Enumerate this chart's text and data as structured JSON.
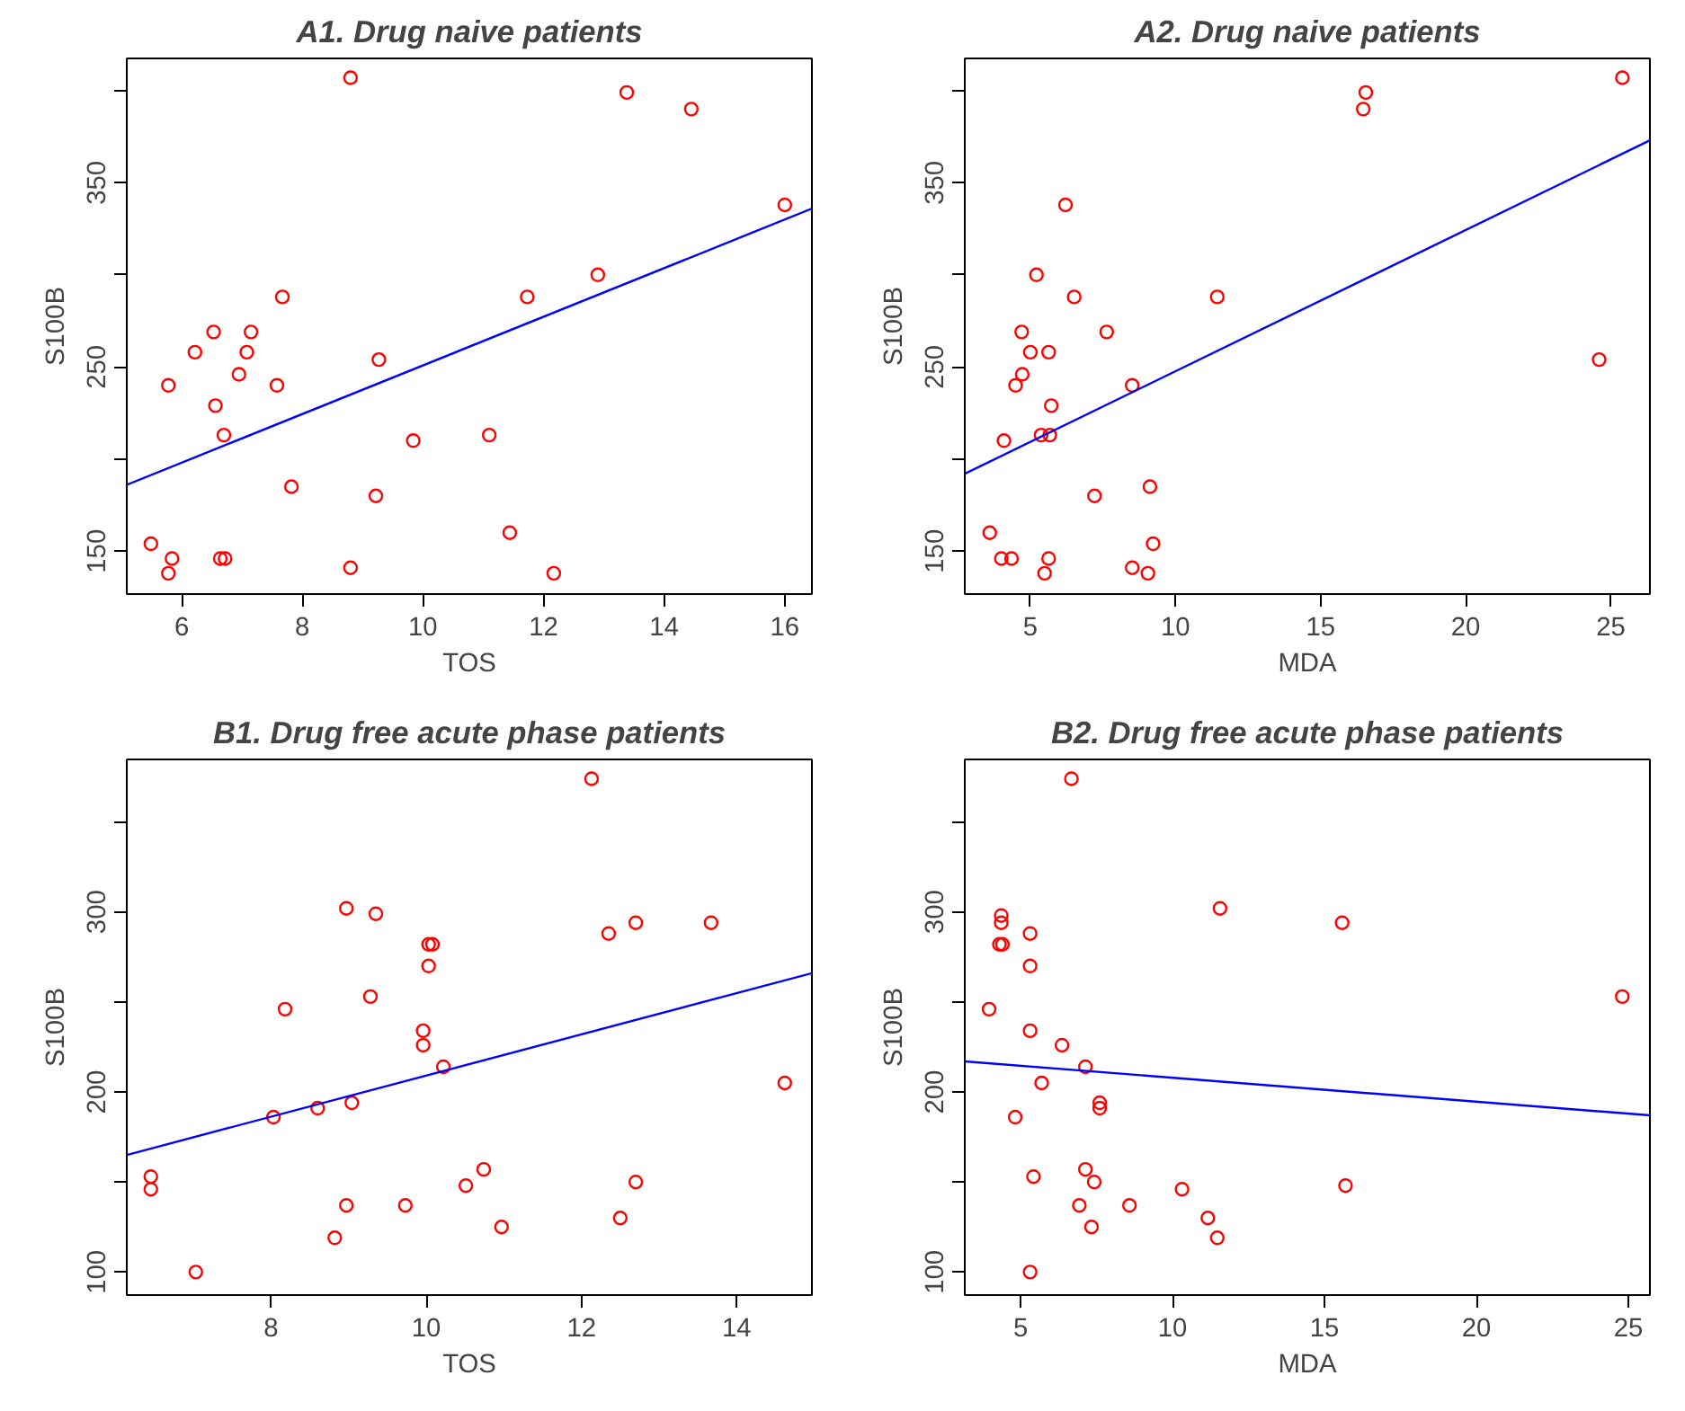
{
  "chart_data": [
    {
      "type": "scatter",
      "title": "A1. Drug naive patients",
      "xlabel": "TOS",
      "ylabel": "S100B",
      "grid": false,
      "xlim": [
        5.09,
        16.45
      ],
      "ylim": [
        126.7,
        417.5
      ],
      "xticks": [
        6,
        8,
        10,
        12,
        14,
        16
      ],
      "yticks": [
        150,
        {
          "value": 200,
          "label": null
        },
        250,
        {
          "value": 300,
          "label": null
        },
        350,
        {
          "value": 400,
          "label": null
        }
      ],
      "series": [
        {
          "marker": "circle",
          "color": "#ff0000",
          "x": [
            8.8,
            13.38,
            14.45,
            16.0,
            12.9,
            7.67,
            11.73,
            6.53,
            7.15,
            6.22,
            7.08,
            9.27,
            6.95,
            5.78,
            7.58,
            6.56,
            6.7,
            9.84,
            11.1,
            7.82,
            9.22,
            11.44,
            5.49,
            5.84,
            6.64,
            6.72,
            5.78,
            8.8,
            12.17
          ],
          "values": [
            407,
            399,
            390,
            338,
            300,
            288,
            288,
            269,
            269,
            258,
            258,
            254,
            246,
            240,
            240,
            229,
            213,
            210,
            213,
            185,
            180,
            160,
            154,
            146,
            146,
            146,
            138,
            141,
            138
          ]
        },
        {
          "type": "line",
          "marker": "none",
          "color": "#0000ff",
          "x": [
            5.09,
            16.45
          ],
          "values": [
            186,
            336
          ]
        }
      ]
    },
    {
      "type": "scatter",
      "title": "A2. Drug naive patients",
      "xlabel": "MDA",
      "ylabel": "S100B",
      "grid": false,
      "xlim": [
        2.74,
        26.35
      ],
      "ylim": [
        126.7,
        417.5
      ],
      "xticks": [
        5,
        10,
        15,
        20,
        25
      ],
      "yticks": [
        150,
        {
          "value": 200,
          "label": null
        },
        250,
        {
          "value": 300,
          "label": null
        },
        350,
        {
          "value": 400,
          "label": null
        }
      ],
      "series": [
        {
          "marker": "circle",
          "color": "#ff0000",
          "x": [
            25.4,
            16.56,
            16.47,
            6.21,
            5.21,
            6.51,
            11.44,
            4.7,
            7.63,
            5.0,
            5.63,
            24.6,
            4.72,
            4.49,
            8.51,
            5.72,
            5.37,
            5.67,
            4.09,
            9.12,
            7.21,
            9.23,
            3.6,
            4.0,
            4.35,
            5.63,
            5.49,
            8.51,
            9.05
          ],
          "values": [
            407,
            399,
            390,
            338,
            300,
            288,
            288,
            269,
            269,
            258,
            258,
            254,
            246,
            240,
            240,
            229,
            213,
            213,
            210,
            185,
            180,
            154,
            160,
            146,
            146,
            146,
            138,
            141,
            138
          ]
        },
        {
          "type": "line",
          "marker": "none",
          "color": "#0000ff",
          "x": [
            2.74,
            26.35
          ],
          "values": [
            192,
            373
          ]
        }
      ]
    },
    {
      "type": "scatter",
      "title": "B1. Drug free acute phase patients",
      "xlabel": "TOS",
      "ylabel": "S100B",
      "grid": false,
      "xlim": [
        6.14,
        14.97
      ],
      "ylim": [
        87.2,
        384.7
      ],
      "xticks": [
        8,
        10,
        12,
        14
      ],
      "yticks": [
        100,
        {
          "value": 150,
          "label": null
        },
        200,
        {
          "value": 250,
          "label": null
        },
        300,
        {
          "value": 350,
          "label": null
        }
      ],
      "series": [
        {
          "marker": "circle",
          "color": "#ff0000",
          "x": [
            12.13,
            8.97,
            9.35,
            12.35,
            12.7,
            13.67,
            10.03,
            10.08,
            10.03,
            9.28,
            8.18,
            9.96,
            9.96,
            10.22,
            14.62,
            9.04,
            8.6,
            8.03,
            6.45,
            6.45,
            10.74,
            10.51,
            12.7,
            8.97,
            9.73,
            12.5,
            10.97,
            8.82,
            7.03
          ],
          "values": [
            374,
            302,
            299,
            288,
            294,
            294,
            282,
            282,
            270,
            253,
            246,
            234,
            226,
            214,
            205,
            194,
            191,
            186,
            153,
            146,
            157,
            148,
            150,
            137,
            137,
            130,
            125,
            119,
            100
          ]
        },
        {
          "type": "line",
          "marker": "none",
          "color": "#0000ff",
          "x": [
            6.14,
            14.97
          ],
          "values": [
            165,
            266
          ]
        }
      ]
    },
    {
      "type": "scatter",
      "title": "B2. Drug free acute phase patients",
      "xlabel": "MDA",
      "ylabel": "S100B",
      "grid": false,
      "xlim": [
        3.16,
        25.71
      ],
      "ylim": [
        87.2,
        384.7
      ],
      "xticks": [
        5,
        10,
        15,
        20,
        25
      ],
      "yticks": [
        100,
        {
          "value": 150,
          "label": null
        },
        200,
        {
          "value": 250,
          "label": null
        },
        300,
        {
          "value": 350,
          "label": null
        }
      ],
      "series": [
        {
          "marker": "circle",
          "color": "#ff0000",
          "x": [
            6.67,
            11.56,
            15.58,
            4.36,
            4.36,
            4.3,
            4.4,
            5.31,
            5.31,
            3.96,
            24.8,
            5.31,
            6.36,
            7.13,
            5.69,
            7.6,
            7.6,
            4.82,
            5.42,
            7.13,
            7.42,
            15.69,
            10.31,
            6.93,
            8.58,
            11.16,
            7.33,
            11.47,
            5.31
          ],
          "values": [
            374,
            302,
            294,
            298,
            294,
            282,
            282,
            288,
            270,
            246,
            253,
            234,
            226,
            214,
            205,
            194,
            191,
            186,
            153,
            157,
            150,
            148,
            146,
            137,
            137,
            130,
            125,
            119,
            100
          ]
        },
        {
          "type": "line",
          "marker": "none",
          "color": "#0000ff",
          "x": [
            3.16,
            25.71
          ],
          "values": [
            217,
            187
          ]
        }
      ]
    }
  ]
}
